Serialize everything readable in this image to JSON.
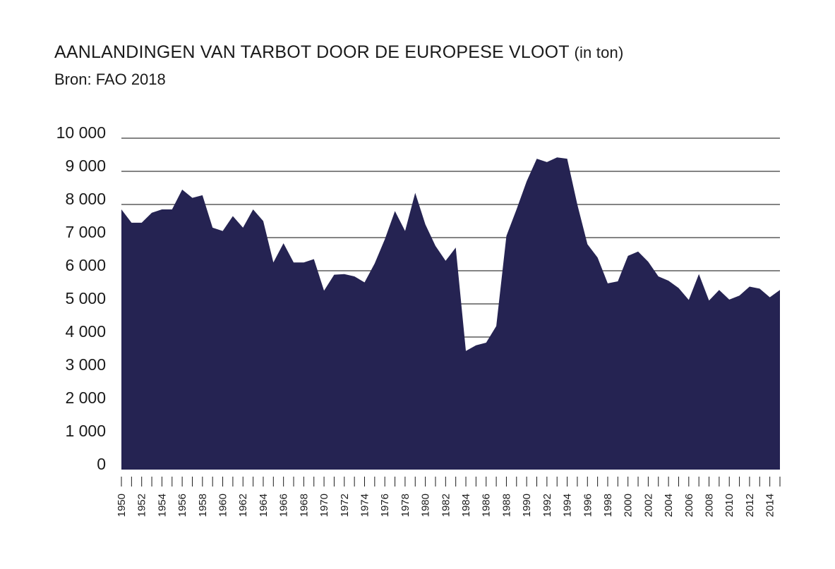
{
  "chart_data": {
    "type": "area",
    "title": "AANLANDINGEN VAN TARBOT DOOR DE EUROPESE VLOOT",
    "title_unit": "(in ton)",
    "subtitle": "Bron: FAO 2018",
    "xlabel": "",
    "ylabel": "",
    "ylim": [
      0,
      10000
    ],
    "yticks": [
      0,
      1000,
      2000,
      3000,
      4000,
      5000,
      6000,
      7000,
      8000,
      9000,
      10000
    ],
    "ytick_labels": [
      "0",
      "1 000",
      "2 000",
      "3 000",
      "4 000",
      "5 000",
      "6 000",
      "7 000",
      "8 000",
      "9 000",
      "10 000"
    ],
    "xtick_labels": [
      "1950",
      "1952",
      "1954",
      "1956",
      "1958",
      "1960",
      "1962",
      "1964",
      "1966",
      "1968",
      "1970",
      "1972",
      "1974",
      "1976",
      "1978",
      "1980",
      "1982",
      "1984",
      "1986",
      "1988",
      "1990",
      "1992",
      "1994",
      "1996",
      "1998",
      "2000",
      "2002",
      "2004",
      "2006",
      "2008",
      "2010",
      "2012",
      "2014"
    ],
    "grid": true,
    "fill_color": "#252352",
    "series": [
      {
        "x": [
          1950,
          1951,
          1952,
          1953,
          1954,
          1955,
          1956,
          1957,
          1958,
          1959,
          1960,
          1961,
          1962,
          1963,
          1964,
          1965,
          1966,
          1967,
          1968,
          1969,
          1970,
          1971,
          1972,
          1973,
          1974,
          1975,
          1976,
          1977,
          1978,
          1979,
          1980,
          1981,
          1982,
          1983,
          1984,
          1985,
          1986,
          1987,
          1988,
          1989,
          1990,
          1991,
          1992,
          1993,
          1994,
          1995,
          1996,
          1997,
          1998,
          1999,
          2000,
          2001,
          2002,
          2003,
          2004,
          2005,
          2006,
          2007,
          2008,
          2009,
          2010,
          2011,
          2012,
          2013,
          2014,
          2015
        ],
        "values": [
          7850,
          7450,
          7450,
          7750,
          7850,
          7850,
          8450,
          8200,
          8280,
          7300,
          7200,
          7650,
          7300,
          7850,
          7500,
          6250,
          6830,
          6250,
          6250,
          6350,
          5400,
          5880,
          5900,
          5830,
          5650,
          6220,
          6950,
          7800,
          7200,
          8350,
          7400,
          6750,
          6300,
          6700,
          3580,
          3750,
          3830,
          4330,
          7050,
          7850,
          8700,
          9380,
          9280,
          9420,
          9380,
          8000,
          6800,
          6400,
          5620,
          5680,
          6450,
          6580,
          6270,
          5830,
          5700,
          5480,
          5120,
          5900,
          5100,
          5420,
          5130,
          5250,
          5520,
          5460,
          5200,
          5420
        ]
      }
    ]
  }
}
